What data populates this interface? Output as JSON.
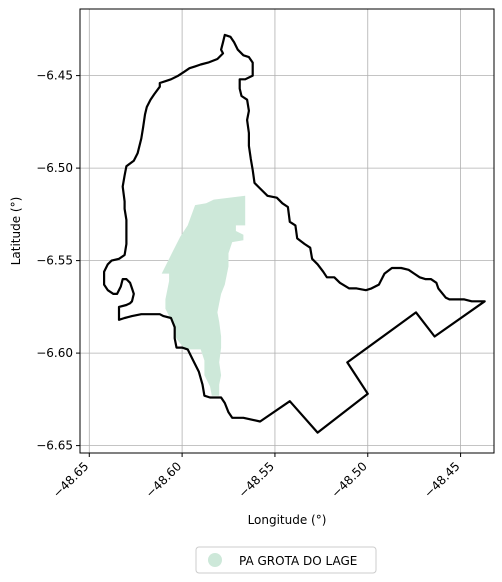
{
  "chart_data": {
    "type": "map",
    "title": "",
    "xlabel": "Longitude (°)",
    "ylabel": "Latitude (°)",
    "xlim": [
      -48.655,
      -48.432
    ],
    "ylim": [
      -6.654,
      -6.414
    ],
    "xticks": [
      -48.65,
      -48.6,
      -48.55,
      -48.5,
      -48.45
    ],
    "xtick_labels": [
      "−48.65",
      "−48.60",
      "−48.55",
      "−48.50",
      "−48.45"
    ],
    "yticks": [
      -6.45,
      -6.5,
      -6.55,
      -6.6,
      -6.65
    ],
    "ytick_labels": [
      "−6.45",
      "−6.50",
      "−6.55",
      "−6.60",
      "−6.65"
    ],
    "grid": true,
    "legend_position": "bottom-center",
    "legend": [
      {
        "label": "PA GROTA DO LAGE",
        "color": "#cde8d9"
      }
    ],
    "boundary": {
      "color": "#000000",
      "points": [
        [
          -48.577,
          -6.428
        ],
        [
          -48.574,
          -6.429
        ],
        [
          -48.572,
          -6.432
        ],
        [
          -48.57,
          -6.436
        ],
        [
          -48.567,
          -6.439
        ],
        [
          -48.564,
          -6.44
        ],
        [
          -48.562,
          -6.443
        ],
        [
          -48.562,
          -6.45
        ],
        [
          -48.566,
          -6.452
        ],
        [
          -48.569,
          -6.452
        ],
        [
          -48.569,
          -6.457
        ],
        [
          -48.568,
          -6.461
        ],
        [
          -48.565,
          -6.463
        ],
        [
          -48.564,
          -6.469
        ],
        [
          -48.565,
          -6.474
        ],
        [
          -48.564,
          -6.481
        ],
        [
          -48.564,
          -6.488
        ],
        [
          -48.563,
          -6.495
        ],
        [
          -48.562,
          -6.501
        ],
        [
          -48.561,
          -6.508
        ],
        [
          -48.558,
          -6.511
        ],
        [
          -48.554,
          -6.515
        ],
        [
          -48.549,
          -6.516
        ],
        [
          -48.546,
          -6.519
        ],
        [
          -48.543,
          -6.521
        ],
        [
          -48.542,
          -6.529
        ],
        [
          -48.539,
          -6.531
        ],
        [
          -48.538,
          -6.538
        ],
        [
          -48.534,
          -6.541
        ],
        [
          -48.531,
          -6.543
        ],
        [
          -48.53,
          -6.549
        ],
        [
          -48.527,
          -6.552
        ],
        [
          -48.524,
          -6.556
        ],
        [
          -48.522,
          -6.559
        ],
        [
          -48.518,
          -6.559
        ],
        [
          -48.515,
          -6.562
        ],
        [
          -48.51,
          -6.565
        ],
        [
          -48.506,
          -6.565
        ],
        [
          -48.501,
          -6.566
        ],
        [
          -48.498,
          -6.565
        ],
        [
          -48.494,
          -6.563
        ],
        [
          -48.491,
          -6.557
        ],
        [
          -48.487,
          -6.554
        ],
        [
          -48.482,
          -6.554
        ],
        [
          -48.478,
          -6.555
        ],
        [
          -48.475,
          -6.557
        ],
        [
          -48.472,
          -6.559
        ],
        [
          -48.469,
          -6.56
        ],
        [
          -48.466,
          -6.56
        ],
        [
          -48.463,
          -6.562
        ],
        [
          -48.462,
          -6.565
        ],
        [
          -48.458,
          -6.57
        ],
        [
          -48.456,
          -6.571
        ],
        [
          -48.452,
          -6.571
        ],
        [
          -48.448,
          -6.571
        ],
        [
          -48.444,
          -6.572
        ],
        [
          -48.441,
          -6.572
        ],
        [
          -48.437,
          -6.572
        ],
        [
          -48.464,
          -6.591
        ],
        [
          -48.474,
          -6.578
        ],
        [
          -48.511,
          -6.605
        ],
        [
          -48.5,
          -6.622
        ],
        [
          -48.527,
          -6.643
        ],
        [
          -48.542,
          -6.626
        ],
        [
          -48.558,
          -6.637
        ],
        [
          -48.567,
          -6.635
        ],
        [
          -48.573,
          -6.635
        ],
        [
          -48.575,
          -6.632
        ],
        [
          -48.577,
          -6.627
        ],
        [
          -48.579,
          -6.624
        ],
        [
          -48.585,
          -6.624
        ],
        [
          -48.588,
          -6.623
        ],
        [
          -48.589,
          -6.617
        ],
        [
          -48.591,
          -6.61
        ],
        [
          -48.594,
          -6.604
        ],
        [
          -48.597,
          -6.598
        ],
        [
          -48.6,
          -6.597
        ],
        [
          -48.603,
          -6.597
        ],
        [
          -48.604,
          -6.592
        ],
        [
          -48.604,
          -6.586
        ],
        [
          -48.606,
          -6.581
        ],
        [
          -48.61,
          -6.58
        ],
        [
          -48.612,
          -6.579
        ],
        [
          -48.617,
          -6.579
        ],
        [
          -48.622,
          -6.579
        ],
        [
          -48.627,
          -6.58
        ],
        [
          -48.631,
          -6.581
        ],
        [
          -48.634,
          -6.582
        ],
        [
          -48.634,
          -6.575
        ],
        [
          -48.63,
          -6.574
        ],
        [
          -48.628,
          -6.573
        ],
        [
          -48.627,
          -6.572
        ],
        [
          -48.626,
          -6.568
        ],
        [
          -48.627,
          -6.565
        ],
        [
          -48.628,
          -6.562
        ],
        [
          -48.63,
          -6.56
        ],
        [
          -48.632,
          -6.56
        ],
        [
          -48.633,
          -6.564
        ],
        [
          -48.635,
          -6.568
        ],
        [
          -48.637,
          -6.568
        ],
        [
          -48.64,
          -6.566
        ],
        [
          -48.642,
          -6.563
        ],
        [
          -48.642,
          -6.556
        ],
        [
          -48.64,
          -6.552
        ],
        [
          -48.638,
          -6.55
        ],
        [
          -48.634,
          -6.549
        ],
        [
          -48.631,
          -6.547
        ],
        [
          -48.63,
          -6.541
        ],
        [
          -48.63,
          -6.535
        ],
        [
          -48.63,
          -6.528
        ],
        [
          -48.631,
          -6.522
        ],
        [
          -48.631,
          -6.518
        ],
        [
          -48.632,
          -6.51
        ],
        [
          -48.631,
          -6.504
        ],
        [
          -48.63,
          -6.499
        ],
        [
          -48.626,
          -6.496
        ],
        [
          -48.624,
          -6.492
        ],
        [
          -48.622,
          -6.484
        ],
        [
          -48.621,
          -6.478
        ],
        [
          -48.62,
          -6.471
        ],
        [
          -48.619,
          -6.467
        ],
        [
          -48.617,
          -6.463
        ],
        [
          -48.615,
          -6.46
        ],
        [
          -48.612,
          -6.456
        ],
        [
          -48.612,
          -6.454
        ],
        [
          -48.609,
          -6.453
        ],
        [
          -48.606,
          -6.452
        ],
        [
          -48.602,
          -6.45
        ],
        [
          -48.599,
          -6.448
        ],
        [
          -48.596,
          -6.446
        ],
        [
          -48.593,
          -6.445
        ],
        [
          -48.59,
          -6.444
        ],
        [
          -48.586,
          -6.443
        ],
        [
          -48.581,
          -6.441
        ],
        [
          -48.578,
          -6.438
        ],
        [
          -48.579,
          -6.436
        ],
        [
          -48.578,
          -6.432
        ],
        [
          -48.577,
          -6.428
        ]
      ]
    },
    "area_polygon": {
      "name": "PA GROTA DO LAGE",
      "color": "#cde8d9",
      "points": [
        [
          -48.566,
          -6.515
        ],
        [
          -48.566,
          -6.531
        ],
        [
          -48.571,
          -6.531
        ],
        [
          -48.571,
          -6.534
        ],
        [
          -48.567,
          -6.536
        ],
        [
          -48.567,
          -6.539
        ],
        [
          -48.573,
          -6.54
        ],
        [
          -48.575,
          -6.546
        ],
        [
          -48.575,
          -6.553
        ],
        [
          -48.577,
          -6.563
        ],
        [
          -48.579,
          -6.568
        ],
        [
          -48.58,
          -6.573
        ],
        [
          -48.581,
          -6.578
        ],
        [
          -48.58,
          -6.583
        ],
        [
          -48.579,
          -6.591
        ],
        [
          -48.579,
          -6.597
        ],
        [
          -48.58,
          -6.605
        ],
        [
          -48.579,
          -6.612
        ],
        [
          -48.58,
          -6.617
        ],
        [
          -48.58,
          -6.623
        ],
        [
          -48.584,
          -6.623
        ],
        [
          -48.585,
          -6.618
        ],
        [
          -48.588,
          -6.612
        ],
        [
          -48.588,
          -6.604
        ],
        [
          -48.59,
          -6.598
        ],
        [
          -48.597,
          -6.598
        ],
        [
          -48.6,
          -6.596
        ],
        [
          -48.604,
          -6.591
        ],
        [
          -48.605,
          -6.584
        ],
        [
          -48.609,
          -6.576
        ],
        [
          -48.609,
          -6.571
        ],
        [
          -48.607,
          -6.561
        ],
        [
          -48.607,
          -6.557
        ],
        [
          -48.611,
          -6.557
        ],
        [
          -48.605,
          -6.545
        ],
        [
          -48.601,
          -6.537
        ],
        [
          -48.597,
          -6.531
        ],
        [
          -48.593,
          -6.52
        ],
        [
          -48.587,
          -6.519
        ],
        [
          -48.583,
          -6.517
        ]
      ]
    }
  }
}
